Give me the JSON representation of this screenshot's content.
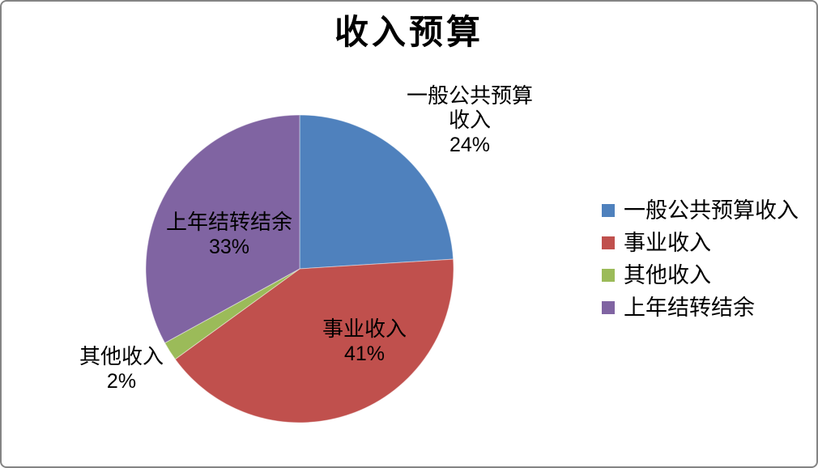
{
  "frame": {
    "background": "#ffffff",
    "border_color": "#848484"
  },
  "chart_data": {
    "type": "pie",
    "title": "收入预算",
    "categories": [
      "一般公共预算收入",
      "事业收入",
      "其他收入",
      "上年结转结余"
    ],
    "values": [
      24,
      41,
      2,
      33
    ],
    "unit": "%",
    "colors": [
      "#4F81BD",
      "#C0504D",
      "#9BBB59",
      "#8064A2"
    ],
    "start_angle_deg": 0,
    "direction": "clockwise",
    "legend_position": "right",
    "data_labels_visible": true
  },
  "slice_labels": [
    {
      "lines": [
        "一般公共预算",
        "收入"
      ],
      "pct": "24%",
      "placement": "outside-top-right"
    },
    {
      "lines": [
        "事业收入"
      ],
      "pct": "41%",
      "placement": "inside"
    },
    {
      "lines": [
        "其他收入"
      ],
      "pct": "2%",
      "placement": "outside-left"
    },
    {
      "lines": [
        "上年结转结余"
      ],
      "pct": "33%",
      "placement": "inside"
    }
  ],
  "legend": {
    "items": [
      {
        "label": "一般公共预算收入",
        "color": "#4F81BD"
      },
      {
        "label": "事业收入",
        "color": "#C0504D"
      },
      {
        "label": "其他收入",
        "color": "#9BBB59"
      },
      {
        "label": "上年结转结余",
        "color": "#8064A2"
      }
    ]
  }
}
